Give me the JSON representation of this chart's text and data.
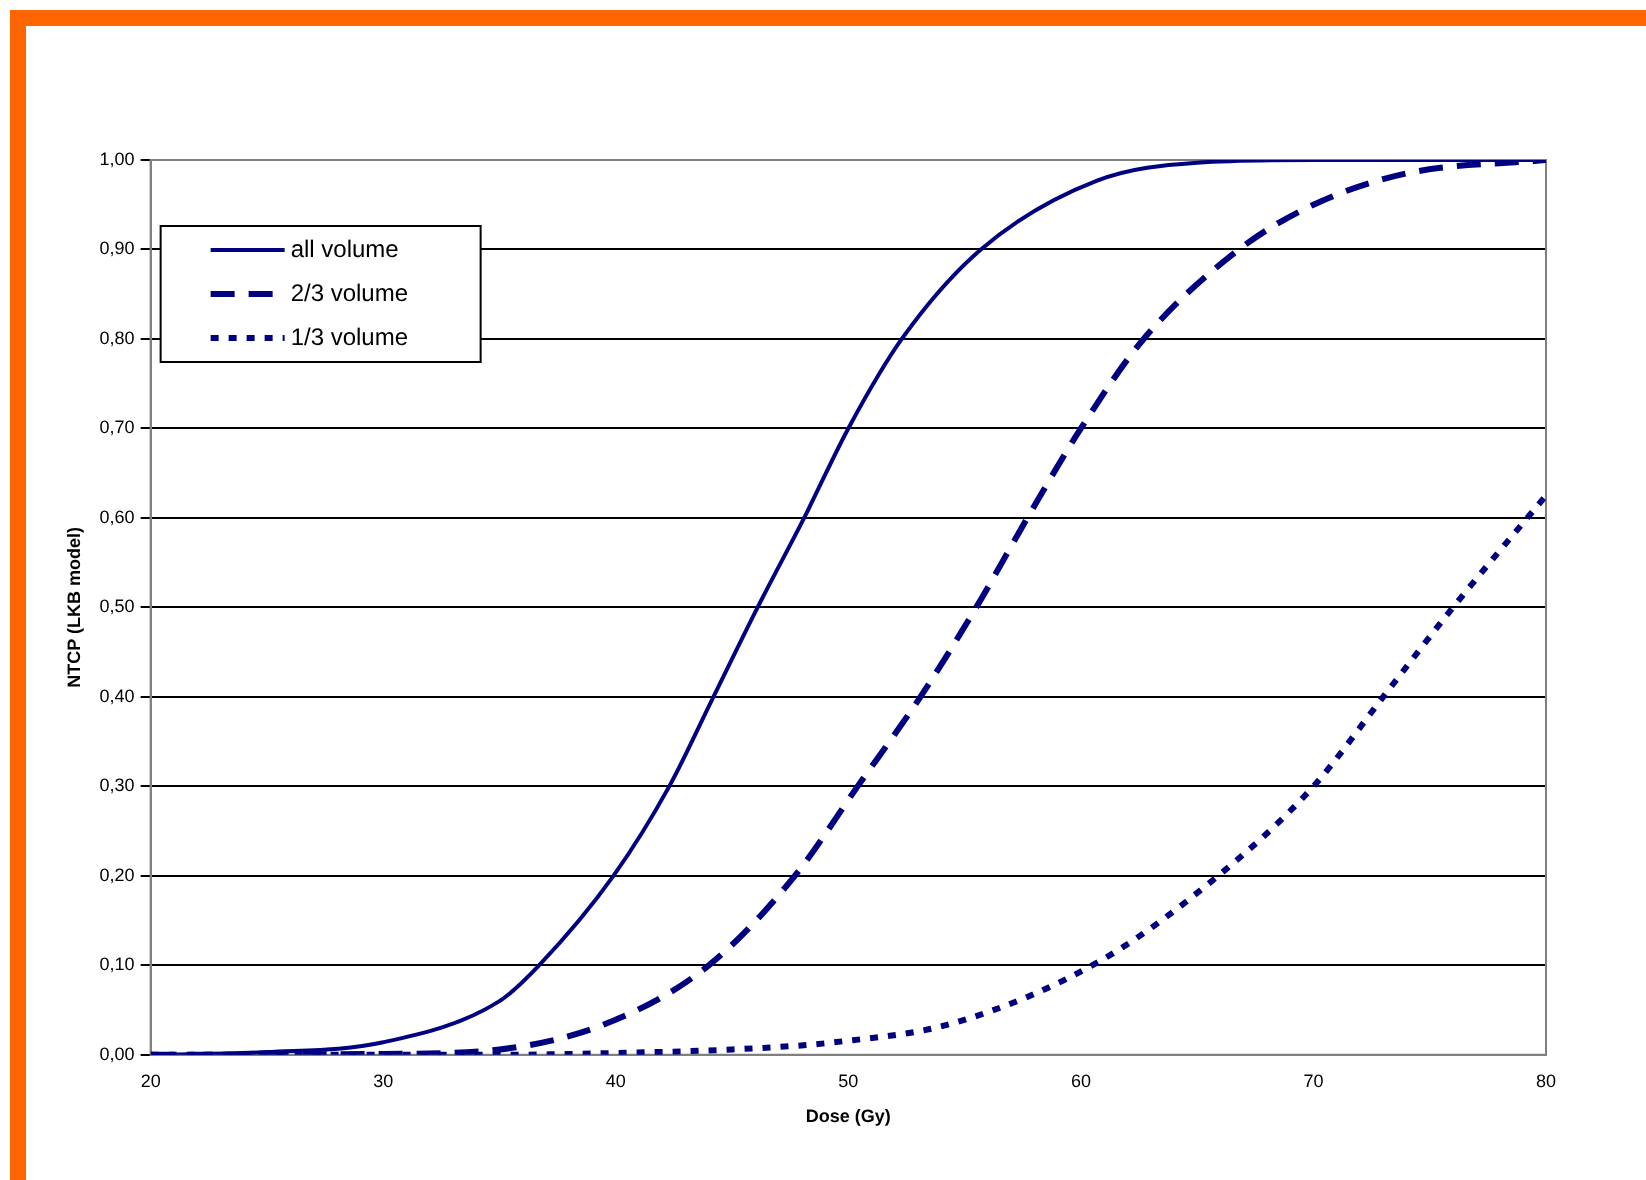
{
  "chart_data": {
    "type": "line",
    "xlabel": "Dose (Gy)",
    "ylabel": "NTCP (LKB model)",
    "series": [
      {
        "name": "all volume",
        "color": "#000080",
        "line_style": "solid",
        "x": [
          20,
          25,
          30,
          35,
          36.7,
          39.9,
          42.3,
          44.2,
          46.1,
          48.1,
          50,
          52.3,
          55.7,
          60.7,
          65,
          70,
          80
        ],
        "values": [
          0,
          0.003,
          0.014,
          0.06,
          0.1,
          0.2,
          0.3,
          0.4,
          0.5,
          0.6,
          0.7,
          0.8,
          0.9,
          0.977,
          0.997,
          1,
          1
        ]
      },
      {
        "name": "2/3 volume",
        "color": "#000080",
        "line_style": "dashed",
        "x": [
          20,
          30,
          35,
          39.7,
          44,
          47.7,
          50.4,
          53.1,
          55.5,
          57.7,
          60,
          62.7,
          66.8,
          70,
          74,
          80
        ],
        "values": [
          0,
          0.001,
          0.006,
          0.036,
          0.1,
          0.2,
          0.3,
          0.4,
          0.5,
          0.6,
          0.7,
          0.8,
          0.9,
          0.95,
          0.985,
          1
        ]
      },
      {
        "name": "1/3 volume",
        "color": "#000080",
        "line_style": "dotted",
        "x": [
          20,
          35,
          40,
          45,
          49.4,
          54.6,
          60.9,
          65.9,
          70,
          73,
          76,
          80
        ],
        "values": [
          0,
          0,
          0.002,
          0.006,
          0.014,
          0.036,
          0.106,
          0.2,
          0.3,
          0.4,
          0.5,
          0.625
        ]
      }
    ],
    "xlim": [
      20,
      80
    ],
    "xticks": [
      20,
      30,
      40,
      50,
      60,
      70,
      80
    ],
    "ylim": [
      0,
      1
    ],
    "yticks": [
      {
        "value": 0,
        "label": "0,00"
      },
      {
        "value": 0.1,
        "label": "0,10"
      },
      {
        "value": 0.2,
        "label": "0,20"
      },
      {
        "value": 0.3,
        "label": "0,30"
      },
      {
        "value": 0.4,
        "label": "0,40"
      },
      {
        "value": 0.5,
        "label": "0,50"
      },
      {
        "value": 0.6,
        "label": "0,60"
      },
      {
        "value": 0.7,
        "label": "0,70"
      },
      {
        "value": 0.8,
        "label": "0,80"
      },
      {
        "value": 0.9,
        "label": "0,90"
      },
      {
        "value": 1,
        "label": "1,00"
      }
    ],
    "grid": "y",
    "legend": "top left"
  }
}
